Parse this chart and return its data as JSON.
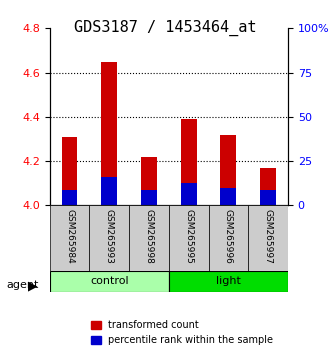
{
  "title": "GDS3187 / 1453464_at",
  "samples": [
    "GSM265984",
    "GSM265993",
    "GSM265998",
    "GSM265995",
    "GSM265996",
    "GSM265997"
  ],
  "groups": [
    "control",
    "control",
    "control",
    "light",
    "light",
    "light"
  ],
  "red_values": [
    4.31,
    4.65,
    4.22,
    4.39,
    4.32,
    4.17
  ],
  "blue_values": [
    4.07,
    4.13,
    4.07,
    4.1,
    4.08,
    4.07
  ],
  "ymin": 4.0,
  "ymax": 4.8,
  "yticks_left": [
    4.0,
    4.2,
    4.4,
    4.6,
    4.8
  ],
  "yticks_right": [
    0,
    25,
    50,
    75,
    100
  ],
  "ytick_labels_right": [
    "0",
    "25",
    "50",
    "75",
    "100%"
  ],
  "bar_width": 0.4,
  "bar_color_red": "#cc0000",
  "bar_color_blue": "#0000cc",
  "group_colors": {
    "control": "#aaffaa",
    "light": "#00cc00"
  },
  "legend_red": "transformed count",
  "legend_blue": "percentile rank within the sample",
  "xlabel_agent": "agent",
  "group_label_control": "control",
  "group_label_light": "light",
  "background_color": "#ffffff",
  "sample_box_color": "#cccccc",
  "title_fontsize": 11,
  "axis_label_fontsize": 8,
  "legend_fontsize": 7,
  "tick_fontsize": 8
}
